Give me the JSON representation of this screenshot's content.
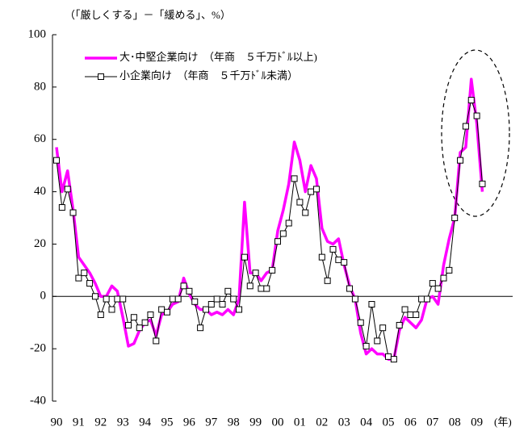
{
  "chart_data": {
    "type": "line",
    "y_label": "（「厳しくする」－「緩める」、%）",
    "x_unit": "(年)",
    "categories": [
      "90",
      null,
      null,
      null,
      "91",
      null,
      null,
      null,
      "92",
      null,
      null,
      null,
      "93",
      null,
      null,
      null,
      "94",
      null,
      null,
      null,
      "95",
      null,
      null,
      null,
      "96",
      null,
      null,
      null,
      "97",
      null,
      null,
      null,
      "98",
      null,
      null,
      null,
      "99",
      null,
      null,
      null,
      "00",
      null,
      null,
      null,
      "01",
      null,
      null,
      null,
      "02",
      null,
      null,
      null,
      "03",
      null,
      null,
      null,
      "04",
      null,
      null,
      null,
      "05",
      null,
      null,
      null,
      "06",
      null,
      null,
      null,
      "07",
      null,
      null,
      null,
      "08",
      null,
      null,
      null,
      "09",
      null
    ],
    "series": [
      {
        "name": "大･中堅企業向け　（年商　５千万ﾄﾞﾙ以上)",
        "color": "#ff00ff",
        "marker": false,
        "values": [
          57,
          40,
          48,
          33,
          15,
          12,
          9,
          5,
          0,
          0,
          4,
          2,
          -8,
          -19,
          -18,
          -13,
          -10,
          -9,
          -15,
          -7,
          -6,
          -3,
          -2,
          7,
          1,
          -3,
          -5,
          -5,
          -7,
          -6,
          -7,
          -5,
          -7,
          -1,
          36,
          9,
          9,
          6,
          9,
          10,
          25,
          33,
          43,
          59,
          52,
          40,
          50,
          45,
          26,
          21,
          20,
          22,
          12,
          4,
          -1,
          -14,
          -22,
          -20,
          -22,
          -22,
          -24,
          -24,
          -13,
          -8,
          -10,
          -12,
          -9,
          -1,
          0,
          -3,
          12,
          22,
          30,
          55,
          57,
          83,
          66,
          40
        ]
      },
      {
        "name": "小企業向け　（年商　５千万ﾄﾞﾙ未満）",
        "color": "#000000",
        "marker": true,
        "values": [
          52,
          34,
          41,
          32,
          7,
          9,
          5,
          0,
          -7,
          -1,
          -5,
          -1,
          -1,
          -11,
          -8,
          -12,
          -10,
          -7,
          -17,
          -5,
          -6,
          -1,
          -1,
          4,
          2,
          -2,
          -12,
          -5,
          -3,
          -1,
          -3,
          2,
          -1,
          -5,
          15,
          4,
          9,
          3,
          3,
          10,
          21,
          24,
          28,
          45,
          36,
          32,
          40,
          41,
          15,
          6,
          18,
          14,
          13,
          3,
          -1,
          -10,
          -19,
          -3,
          -17,
          -12,
          -23,
          -24,
          -11,
          -5,
          -7,
          -7,
          -1,
          -1,
          5,
          3,
          7,
          10,
          30,
          52,
          65,
          75,
          69,
          43
        ]
      }
    ],
    "ylim": [
      -40,
      100
    ],
    "yticks": [
      -40,
      -20,
      0,
      20,
      40,
      60,
      80,
      100
    ],
    "grid": false
  }
}
